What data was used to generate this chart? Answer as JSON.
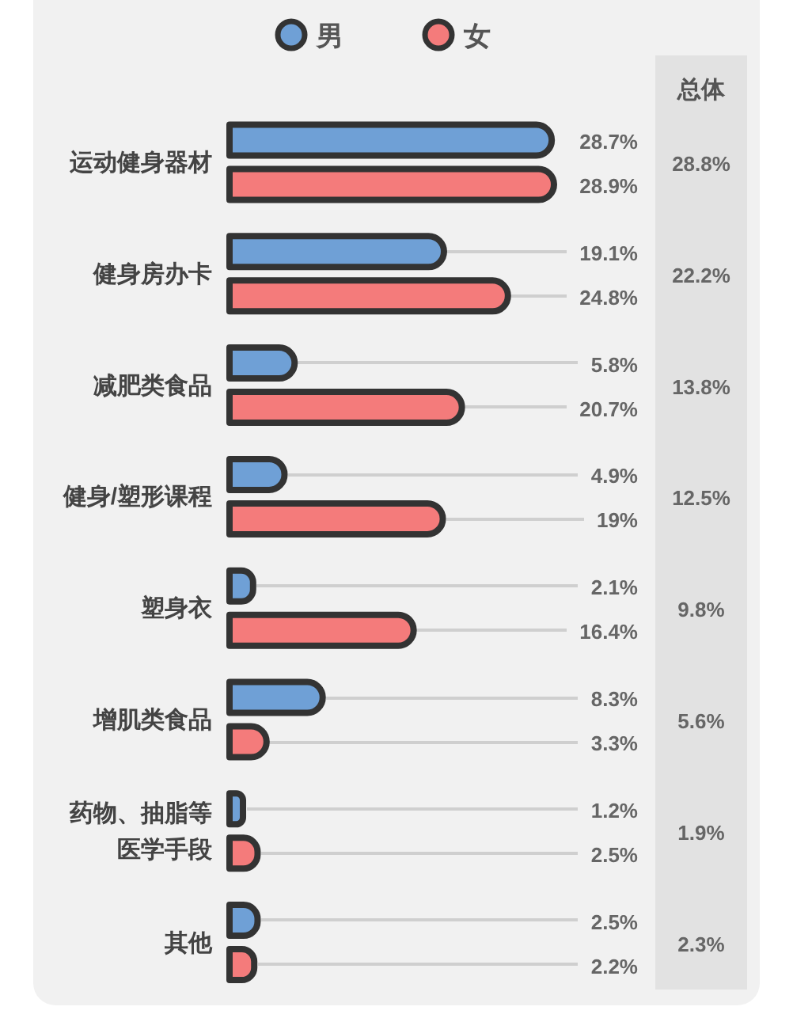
{
  "chart_data": {
    "type": "bar",
    "orientation": "horizontal",
    "categories": [
      "运动健身器材",
      "健身房办卡",
      "减肥类食品",
      "健身/塑形课程",
      "塑身衣",
      "增肌类食品",
      "药物、抽脂等医学手段",
      "其他"
    ],
    "series": [
      {
        "name": "男",
        "color": "#6fa0d6",
        "values": [
          28.7,
          19.1,
          5.8,
          4.9,
          2.1,
          8.3,
          1.2,
          2.5
        ],
        "value_labels": [
          "28.7%",
          "19.1%",
          "5.8%",
          "4.9%",
          "2.1%",
          "8.3%",
          "1.2%",
          "2.5%"
        ]
      },
      {
        "name": "女",
        "color": "#f47b7b",
        "values": [
          28.9,
          24.8,
          20.7,
          19,
          16.4,
          3.3,
          2.5,
          2.2
        ],
        "value_labels": [
          "28.9%",
          "24.8%",
          "20.7%",
          "19%",
          "16.4%",
          "3.3%",
          "2.5%",
          "2.2%"
        ]
      }
    ],
    "legend": "top",
    "annotations": [
      "总体",
      "28.8%",
      "22.2%",
      "13.8%",
      "12.5%",
      "9.8%",
      "5.6%",
      "1.9%",
      "2.3%"
    ]
  }
}
